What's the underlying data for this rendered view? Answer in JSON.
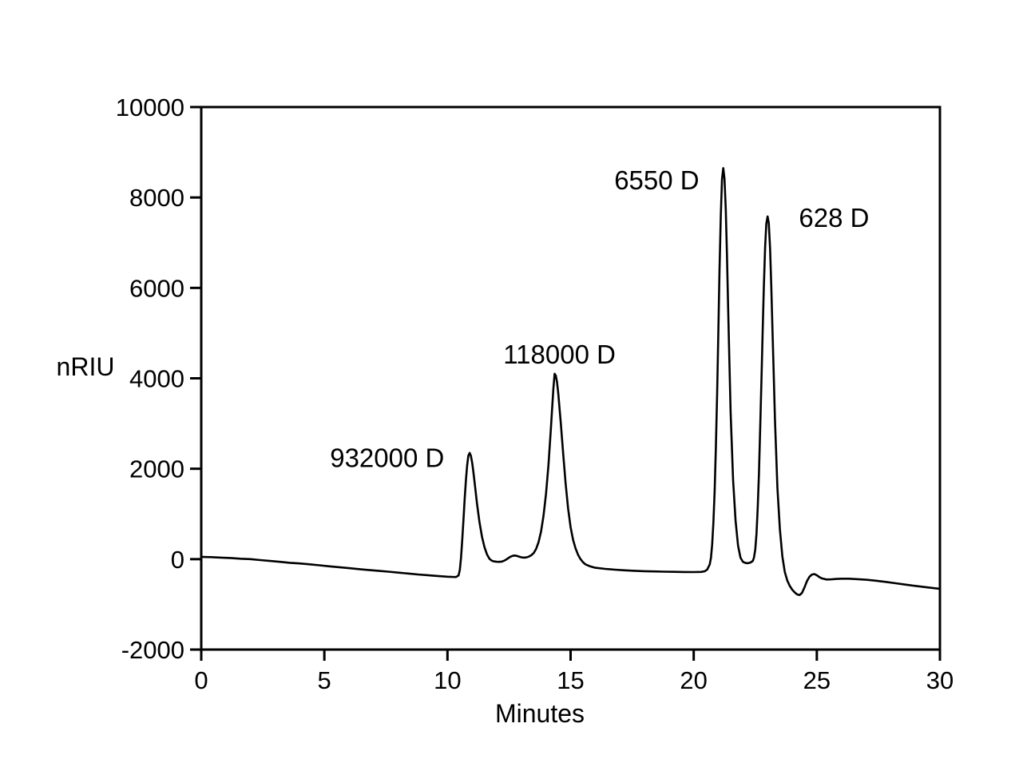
{
  "figure": {
    "background": "#ffffff",
    "frame_color": "#000000",
    "trace_color": "#000000"
  },
  "chart_data": {
    "type": "line",
    "title": "",
    "xlabel": "Minutes",
    "ylabel": "nRIU",
    "xlim": [
      0,
      30
    ],
    "ylim": [
      -2000,
      10000
    ],
    "x_ticks": [
      "0",
      "5",
      "10",
      "15",
      "20",
      "25",
      "30"
    ],
    "y_ticks": [
      "10000",
      "8000",
      "6000",
      "4000",
      "2000",
      "0",
      "-2000"
    ],
    "grid": false,
    "legend": "none",
    "annotation_color": "#e81b1e",
    "annotations": [
      {
        "text": "932000 D",
        "x": 7.55,
        "y": 2250
      },
      {
        "text": "118000 D",
        "x": 14.55,
        "y": 4540
      },
      {
        "text": "6550 D",
        "x": 18.5,
        "y": 8390
      },
      {
        "text": "628 D",
        "x": 25.7,
        "y": 7560
      }
    ],
    "peaks": [
      {
        "label": "932000 D",
        "retention_min": 10.9,
        "apex_nRIU": 2350
      },
      {
        "label": "118000 D",
        "retention_min": 14.35,
        "apex_nRIU": 4100
      },
      {
        "label": "6550 D",
        "retention_min": 21.2,
        "apex_nRIU": 8650
      },
      {
        "label": "628 D",
        "retention_min": 23.0,
        "apex_nRIU": 7580
      }
    ],
    "series": [
      {
        "name": "RI trace",
        "points": [
          [
            0,
            50
          ],
          [
            0.4,
            45
          ],
          [
            0.8,
            35
          ],
          [
            1.2,
            25
          ],
          [
            1.6,
            10
          ],
          [
            2,
            0
          ],
          [
            2.4,
            -20
          ],
          [
            2.8,
            -40
          ],
          [
            3.2,
            -60
          ],
          [
            3.6,
            -80
          ],
          [
            4,
            -95
          ],
          [
            4.4,
            -115
          ],
          [
            4.8,
            -135
          ],
          [
            5.2,
            -158
          ],
          [
            5.6,
            -178
          ],
          [
            6,
            -200
          ],
          [
            6.4,
            -220
          ],
          [
            6.8,
            -240
          ],
          [
            7.2,
            -258
          ],
          [
            7.6,
            -276
          ],
          [
            8,
            -298
          ],
          [
            8.4,
            -318
          ],
          [
            8.8,
            -338
          ],
          [
            9.2,
            -355
          ],
          [
            9.6,
            -372
          ],
          [
            10,
            -388
          ],
          [
            10.2,
            -394
          ],
          [
            10.35,
            -396
          ],
          [
            10.45,
            -360
          ],
          [
            10.5,
            -240
          ],
          [
            10.55,
            30
          ],
          [
            10.6,
            420
          ],
          [
            10.65,
            880
          ],
          [
            10.7,
            1340
          ],
          [
            10.75,
            1760
          ],
          [
            10.8,
            2080
          ],
          [
            10.85,
            2290
          ],
          [
            10.9,
            2350
          ],
          [
            10.95,
            2290
          ],
          [
            11,
            2140
          ],
          [
            11.05,
            1940
          ],
          [
            11.1,
            1700
          ],
          [
            11.2,
            1230
          ],
          [
            11.3,
            820
          ],
          [
            11.4,
            500
          ],
          [
            11.5,
            270
          ],
          [
            11.6,
            110
          ],
          [
            11.7,
            10
          ],
          [
            11.8,
            -35
          ],
          [
            11.9,
            -50
          ],
          [
            12,
            -57
          ],
          [
            12.1,
            -60
          ],
          [
            12.2,
            -55
          ],
          [
            12.3,
            -35
          ],
          [
            12.4,
            -5
          ],
          [
            12.5,
            35
          ],
          [
            12.6,
            65
          ],
          [
            12.7,
            80
          ],
          [
            12.8,
            75
          ],
          [
            12.9,
            58
          ],
          [
            13,
            42
          ],
          [
            13.1,
            35
          ],
          [
            13.2,
            38
          ],
          [
            13.3,
            55
          ],
          [
            13.4,
            85
          ],
          [
            13.5,
            135
          ],
          [
            13.6,
            225
          ],
          [
            13.7,
            375
          ],
          [
            13.8,
            610
          ],
          [
            13.9,
            960
          ],
          [
            14,
            1440
          ],
          [
            14.1,
            2080
          ],
          [
            14.2,
            2880
          ],
          [
            14.3,
            3760
          ],
          [
            14.35,
            4100
          ],
          [
            14.4,
            4060
          ],
          [
            14.45,
            3920
          ],
          [
            14.5,
            3660
          ],
          [
            14.6,
            3020
          ],
          [
            14.7,
            2320
          ],
          [
            14.8,
            1670
          ],
          [
            14.9,
            1120
          ],
          [
            15,
            710
          ],
          [
            15.1,
            430
          ],
          [
            15.2,
            240
          ],
          [
            15.3,
            100
          ],
          [
            15.4,
            5
          ],
          [
            15.5,
            -65
          ],
          [
            15.6,
            -115
          ],
          [
            15.8,
            -160
          ],
          [
            16,
            -190
          ],
          [
            16.4,
            -215
          ],
          [
            16.8,
            -233
          ],
          [
            17.2,
            -247
          ],
          [
            17.6,
            -258
          ],
          [
            18,
            -266
          ],
          [
            18.4,
            -272
          ],
          [
            18.8,
            -277
          ],
          [
            19.2,
            -281
          ],
          [
            19.6,
            -284
          ],
          [
            20,
            -286
          ],
          [
            20.3,
            -282
          ],
          [
            20.45,
            -268
          ],
          [
            20.55,
            -230
          ],
          [
            20.65,
            -120
          ],
          [
            20.7,
            30
          ],
          [
            20.75,
            330
          ],
          [
            20.8,
            800
          ],
          [
            20.85,
            1500
          ],
          [
            20.9,
            2450
          ],
          [
            20.95,
            3650
          ],
          [
            21,
            5000
          ],
          [
            21.05,
            6400
          ],
          [
            21.1,
            7600
          ],
          [
            21.15,
            8400
          ],
          [
            21.2,
            8650
          ],
          [
            21.25,
            8420
          ],
          [
            21.3,
            7750
          ],
          [
            21.35,
            6750
          ],
          [
            21.4,
            5550
          ],
          [
            21.45,
            4350
          ],
          [
            21.5,
            3250
          ],
          [
            21.6,
            1750
          ],
          [
            21.7,
            850
          ],
          [
            21.8,
            300
          ],
          [
            21.9,
            30
          ],
          [
            22,
            -60
          ],
          [
            22.1,
            -85
          ],
          [
            22.2,
            -90
          ],
          [
            22.3,
            -75
          ],
          [
            22.4,
            -40
          ],
          [
            22.45,
            40
          ],
          [
            22.5,
            220
          ],
          [
            22.55,
            560
          ],
          [
            22.6,
            1120
          ],
          [
            22.65,
            1900
          ],
          [
            22.7,
            2880
          ],
          [
            22.75,
            3950
          ],
          [
            22.8,
            5020
          ],
          [
            22.85,
            6020
          ],
          [
            22.9,
            6900
          ],
          [
            22.95,
            7420
          ],
          [
            23,
            7580
          ],
          [
            23.05,
            7430
          ],
          [
            23.1,
            6880
          ],
          [
            23.15,
            6050
          ],
          [
            23.2,
            5080
          ],
          [
            23.25,
            4080
          ],
          [
            23.3,
            3100
          ],
          [
            23.4,
            1580
          ],
          [
            23.5,
            660
          ],
          [
            23.6,
            60
          ],
          [
            23.7,
            -280
          ],
          [
            23.8,
            -470
          ],
          [
            23.9,
            -590
          ],
          [
            24,
            -675
          ],
          [
            24.1,
            -735
          ],
          [
            24.2,
            -780
          ],
          [
            24.3,
            -795
          ],
          [
            24.4,
            -745
          ],
          [
            24.5,
            -625
          ],
          [
            24.6,
            -485
          ],
          [
            24.7,
            -390
          ],
          [
            24.8,
            -340
          ],
          [
            24.9,
            -330
          ],
          [
            25,
            -355
          ],
          [
            25.1,
            -395
          ],
          [
            25.2,
            -425
          ],
          [
            25.4,
            -450
          ],
          [
            25.6,
            -447
          ],
          [
            25.8,
            -438
          ],
          [
            26,
            -432
          ],
          [
            26.3,
            -433
          ],
          [
            26.6,
            -441
          ],
          [
            27,
            -456
          ],
          [
            27.4,
            -477
          ],
          [
            27.8,
            -503
          ],
          [
            28.2,
            -533
          ],
          [
            28.6,
            -563
          ],
          [
            29,
            -592
          ],
          [
            29.4,
            -618
          ],
          [
            29.7,
            -638
          ],
          [
            30,
            -655
          ]
        ]
      }
    ]
  }
}
